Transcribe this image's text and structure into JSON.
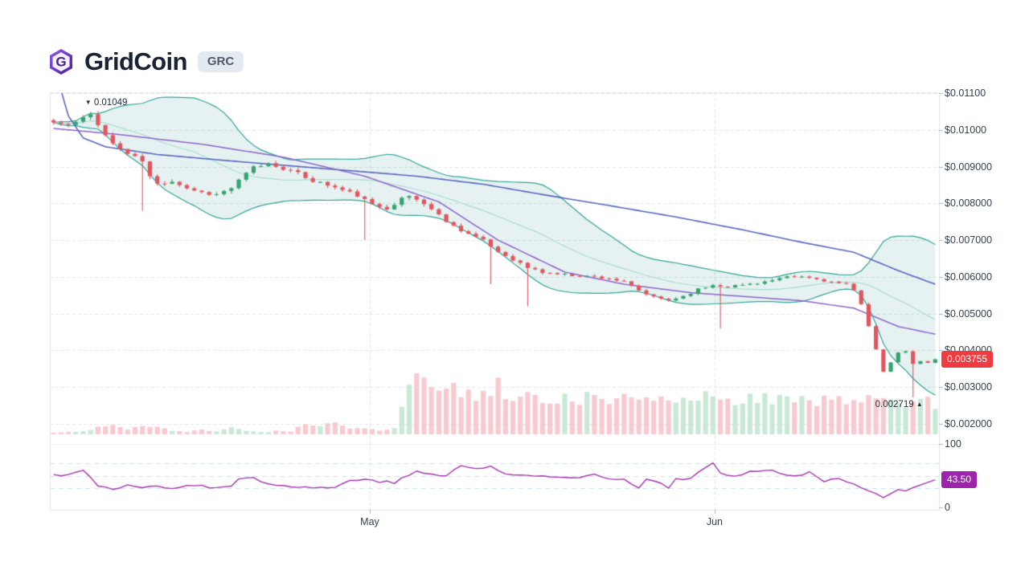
{
  "header": {
    "title": "GridCoin",
    "ticker": "GRC",
    "logo_letter": "G"
  },
  "chart_data": {
    "type": "candlestick",
    "title": "GridCoin (GRC) price chart with Bollinger Bands, volume and RSI",
    "legend_position": "none",
    "grid": true,
    "x_axis": {
      "ticks": [
        {
          "label": "May",
          "index": 42.68
        },
        {
          "label": "Jun",
          "index": 89.22
        }
      ]
    },
    "y_axis": {
      "side": "right",
      "min": 0.002,
      "max": 0.011,
      "ticks": [
        {
          "label": "$0.01100",
          "value": 0.011
        },
        {
          "label": "$0.01000",
          "value": 0.01
        },
        {
          "label": "$0.009000",
          "value": 0.009
        },
        {
          "label": "$0.008000",
          "value": 0.008
        },
        {
          "label": "$0.007000",
          "value": 0.007
        },
        {
          "label": "$0.006000",
          "value": 0.006
        },
        {
          "label": "$0.005000",
          "value": 0.005
        },
        {
          "label": "$0.004000",
          "value": 0.004
        },
        {
          "label": "$0.003000",
          "value": 0.003
        },
        {
          "label": "$0.002000",
          "value": 0.002
        }
      ]
    },
    "rsi_axis": {
      "ticks": [
        {
          "label": "100",
          "value": 100
        },
        {
          "label": "0",
          "value": 0
        }
      ],
      "levels": [
        70,
        50,
        30
      ]
    },
    "candles": {
      "count": 120,
      "seed": 11,
      "close_keyframes": [
        [
          0,
          0.0102
        ],
        [
          2,
          0.01012
        ],
        [
          4,
          0.0103
        ],
        [
          5,
          0.01042
        ],
        [
          6,
          0.01018
        ],
        [
          7,
          0.00985
        ],
        [
          8,
          0.00962
        ],
        [
          10,
          0.00935
        ],
        [
          12,
          0.00915
        ],
        [
          13,
          0.00872
        ],
        [
          14,
          0.00852
        ],
        [
          16,
          0.00862
        ],
        [
          18,
          0.00842
        ],
        [
          20,
          0.0083
        ],
        [
          22,
          0.00824
        ],
        [
          24,
          0.00842
        ],
        [
          26,
          0.0088
        ],
        [
          27,
          0.00898
        ],
        [
          29,
          0.00908
        ],
        [
          31,
          0.00896
        ],
        [
          33,
          0.0088
        ],
        [
          35,
          0.00862
        ],
        [
          37,
          0.0085
        ],
        [
          39,
          0.00836
        ],
        [
          41,
          0.00822
        ],
        [
          43,
          0.00795
        ],
        [
          45,
          0.00788
        ],
        [
          47,
          0.00812
        ],
        [
          48,
          0.0082
        ],
        [
          50,
          0.008
        ],
        [
          52,
          0.00768
        ],
        [
          54,
          0.00738
        ],
        [
          56,
          0.00718
        ],
        [
          58,
          0.00698
        ],
        [
          60,
          0.00668
        ],
        [
          62,
          0.00648
        ],
        [
          64,
          0.00625
        ],
        [
          66,
          0.00612
        ],
        [
          69,
          0.00606
        ],
        [
          72,
          0.00602
        ],
        [
          75,
          0.00596
        ],
        [
          77,
          0.00585
        ],
        [
          79,
          0.00562
        ],
        [
          81,
          0.00544
        ],
        [
          83,
          0.00536
        ],
        [
          85,
          0.00548
        ],
        [
          87,
          0.00566
        ],
        [
          89,
          0.00578
        ],
        [
          91,
          0.00574
        ],
        [
          93,
          0.00578
        ],
        [
          95,
          0.00584
        ],
        [
          97,
          0.0059
        ],
        [
          99,
          0.00598
        ],
        [
          101,
          0.006
        ],
        [
          103,
          0.00594
        ],
        [
          105,
          0.00586
        ],
        [
          107,
          0.00578
        ],
        [
          108,
          0.00562
        ],
        [
          109,
          0.00528
        ],
        [
          110,
          0.00468
        ],
        [
          111,
          0.00402
        ],
        [
          112,
          0.0034
        ],
        [
          113,
          0.00368
        ],
        [
          114,
          0.00392
        ],
        [
          115,
          0.00398
        ],
        [
          116,
          0.00362
        ],
        [
          117,
          0.0037
        ],
        [
          118,
          0.00368
        ],
        [
          119,
          0.003755
        ]
      ],
      "wick_lows": {
        "12": 0.0078,
        "42": 0.007,
        "59": 0.0058,
        "64": 0.0052,
        "90": 0.0046,
        "116": 0.002719
      },
      "wick_highs": {
        "5": 0.01049
      }
    },
    "indicators": {
      "bollinger": {
        "window": 20,
        "mult": 2
      },
      "ma_slow_keyframes": [
        [
          0,
          0.01178
        ],
        [
          2,
          0.01038
        ],
        [
          4,
          0.00978
        ],
        [
          7,
          0.00954
        ],
        [
          14,
          0.00933
        ],
        [
          23,
          0.00917
        ],
        [
          32,
          0.00902
        ],
        [
          40,
          0.00889
        ],
        [
          49,
          0.00874
        ],
        [
          58,
          0.00852
        ],
        [
          66,
          0.00824
        ],
        [
          75,
          0.00794
        ],
        [
          84,
          0.00763
        ],
        [
          93,
          0.00728
        ],
        [
          101,
          0.00694
        ],
        [
          108,
          0.00667
        ],
        [
          114,
          0.00617
        ],
        [
          119,
          0.0058
        ]
      ],
      "ma_fast_keyframes": [
        [
          0,
          0.01004
        ],
        [
          9,
          0.00987
        ],
        [
          20,
          0.00961
        ],
        [
          31,
          0.00926
        ],
        [
          42,
          0.00874
        ],
        [
          52,
          0.00804
        ],
        [
          60,
          0.007
        ],
        [
          69,
          0.00613
        ],
        [
          77,
          0.0058
        ],
        [
          86,
          0.00557
        ],
        [
          95,
          0.00544
        ],
        [
          101,
          0.00535
        ],
        [
          108,
          0.00515
        ],
        [
          114,
          0.00465
        ],
        [
          119,
          0.00444
        ]
      ],
      "volume_keyframes": [
        [
          0,
          3
        ],
        [
          4,
          5
        ],
        [
          6,
          11
        ],
        [
          8,
          14
        ],
        [
          10,
          8
        ],
        [
          12,
          16
        ],
        [
          14,
          11
        ],
        [
          16,
          6
        ],
        [
          18,
          4
        ],
        [
          20,
          8
        ],
        [
          22,
          5
        ],
        [
          24,
          10
        ],
        [
          26,
          6
        ],
        [
          28,
          4
        ],
        [
          30,
          5
        ],
        [
          32,
          4
        ],
        [
          34,
          18
        ],
        [
          36,
          14
        ],
        [
          38,
          18
        ],
        [
          40,
          8
        ],
        [
          42,
          10
        ],
        [
          44,
          6
        ],
        [
          46,
          10
        ],
        [
          47,
          42
        ],
        [
          48,
          80
        ],
        [
          49,
          88
        ],
        [
          51,
          78
        ],
        [
          53,
          82
        ],
        [
          54,
          100
        ],
        [
          55,
          64
        ],
        [
          57,
          66
        ],
        [
          59,
          74
        ],
        [
          60,
          80
        ],
        [
          61,
          64
        ],
        [
          63,
          58
        ],
        [
          65,
          62
        ],
        [
          67,
          60
        ],
        [
          69,
          60
        ],
        [
          71,
          58
        ],
        [
          73,
          62
        ],
        [
          75,
          58
        ],
        [
          77,
          60
        ],
        [
          79,
          62
        ],
        [
          81,
          58
        ],
        [
          83,
          56
        ],
        [
          85,
          60
        ],
        [
          87,
          58
        ],
        [
          89,
          62
        ],
        [
          91,
          56
        ],
        [
          93,
          58
        ],
        [
          95,
          62
        ],
        [
          97,
          58
        ],
        [
          99,
          56
        ],
        [
          101,
          58
        ],
        [
          103,
          54
        ],
        [
          105,
          56
        ],
        [
          107,
          52
        ],
        [
          109,
          56
        ],
        [
          111,
          58
        ],
        [
          113,
          52
        ],
        [
          115,
          48
        ],
        [
          116,
          54
        ],
        [
          117,
          50
        ],
        [
          118,
          56
        ],
        [
          119,
          38
        ]
      ],
      "rsi_keyframes": [
        [
          0,
          52
        ],
        [
          2,
          51
        ],
        [
          4,
          60
        ],
        [
          6,
          32
        ],
        [
          8,
          30
        ],
        [
          10,
          34
        ],
        [
          12,
          31
        ],
        [
          14,
          34
        ],
        [
          16,
          31
        ],
        [
          18,
          35
        ],
        [
          20,
          33
        ],
        [
          22,
          32
        ],
        [
          24,
          35
        ],
        [
          25,
          46
        ],
        [
          27,
          49
        ],
        [
          28,
          39
        ],
        [
          30,
          35
        ],
        [
          32,
          33
        ],
        [
          34,
          32
        ],
        [
          36,
          31
        ],
        [
          38,
          31
        ],
        [
          40,
          43
        ],
        [
          42,
          45
        ],
        [
          44,
          41
        ],
        [
          46,
          39
        ],
        [
          47,
          45
        ],
        [
          49,
          56
        ],
        [
          51,
          53
        ],
        [
          53,
          49
        ],
        [
          55,
          66
        ],
        [
          57,
          61
        ],
        [
          59,
          64
        ],
        [
          61,
          53
        ],
        [
          63,
          51
        ],
        [
          65,
          49
        ],
        [
          67,
          48
        ],
        [
          69,
          47
        ],
        [
          71,
          47
        ],
        [
          73,
          52
        ],
        [
          75,
          45
        ],
        [
          77,
          46
        ],
        [
          79,
          31
        ],
        [
          80,
          45
        ],
        [
          82,
          39
        ],
        [
          83,
          31
        ],
        [
          84,
          45
        ],
        [
          86,
          46
        ],
        [
          88,
          62
        ],
        [
          89,
          70
        ],
        [
          90,
          54
        ],
        [
          92,
          48
        ],
        [
          94,
          55
        ],
        [
          96,
          60
        ],
        [
          98,
          55
        ],
        [
          100,
          50
        ],
        [
          102,
          55
        ],
        [
          104,
          42
        ],
        [
          106,
          46
        ],
        [
          108,
          38
        ],
        [
          110,
          27
        ],
        [
          112,
          14
        ],
        [
          113,
          23
        ],
        [
          114,
          28
        ],
        [
          115,
          24
        ],
        [
          116,
          31
        ],
        [
          117,
          34
        ],
        [
          118,
          39
        ],
        [
          119,
          43.5
        ]
      ]
    },
    "annotations": {
      "high": {
        "marker": "▼",
        "label": "0.01049",
        "index": 5,
        "value": 0.01049
      },
      "low": {
        "label": "0.002719",
        "marker": "▲",
        "index": 116,
        "value": 0.002719
      },
      "last_price": {
        "label": "0.003755",
        "value": 0.003755
      },
      "rsi_value": {
        "label": "43.50",
        "value": 43.5
      }
    },
    "colors": {
      "up": "#35a371",
      "down": "#e2555f",
      "vol_up": "#c5e6d3",
      "vol_down": "#f7c5cc",
      "band": "#2fa396",
      "band_fill": "rgba(77,166,153,0.14)",
      "band_mid": "#a8dacf",
      "ma_slow": "#5765be",
      "ma_fast": "#8b64ca",
      "rsi": "#a232a8",
      "rsi_level": "#c3e2f2",
      "grid": "#e4e4e6",
      "grid_vertical": "#e0e2e6",
      "border": "#e2e6ea",
      "tick": "#aab3bf",
      "axis_text": "#36404e",
      "badge_price": "#f23b40",
      "badge_rsi": "#9e24ad",
      "logo_purple": "#7c3aed",
      "logo_dark": "#4c1d95"
    }
  }
}
